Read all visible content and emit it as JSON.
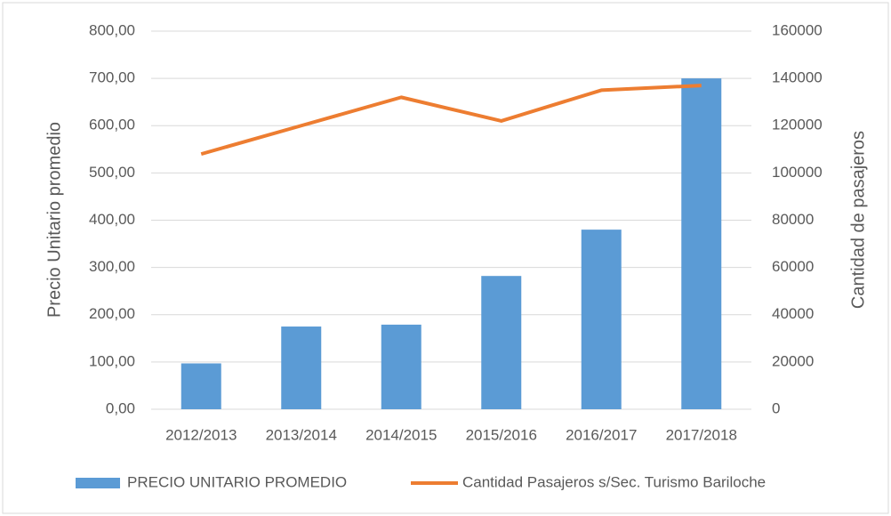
{
  "chart_data": {
    "type": "bar",
    "categories": [
      "2012/2013",
      "2013/2014",
      "2014/2015",
      "2015/2016",
      "2016/2017",
      "2017/2018"
    ],
    "series": [
      {
        "name": "PRECIO UNITARIO PROMEDIO",
        "type": "bar",
        "color": "#5b9bd5",
        "axis": "y",
        "values": [
          97,
          175,
          179,
          282,
          380,
          700
        ]
      },
      {
        "name": "Cantidad Pasajeros s/Sec. Turismo Bariloche",
        "type": "line",
        "color": "#ed7d31",
        "axis": "y2",
        "values": [
          108000,
          120000,
          132000,
          122000,
          135000,
          137000
        ]
      }
    ],
    "ylabel": "Precio Unitario promedio",
    "y2label": "Cantidad de pasajeros",
    "ylim": [
      0,
      800
    ],
    "yticks": [
      {
        "value": 0,
        "label": "0,00"
      },
      {
        "value": 100,
        "label": "100,00"
      },
      {
        "value": 200,
        "label": "200,00"
      },
      {
        "value": 300,
        "label": "300,00"
      },
      {
        "value": 400,
        "label": "400,00"
      },
      {
        "value": 500,
        "label": "500,00"
      },
      {
        "value": 600,
        "label": "600,00"
      },
      {
        "value": 700,
        "label": "700,00"
      },
      {
        "value": 800,
        "label": "800,00"
      }
    ],
    "y2lim": [
      0,
      160000
    ],
    "y2ticks": [
      0,
      20000,
      40000,
      60000,
      80000,
      100000,
      120000,
      140000,
      160000
    ],
    "grid": true,
    "legend": "bottom"
  }
}
